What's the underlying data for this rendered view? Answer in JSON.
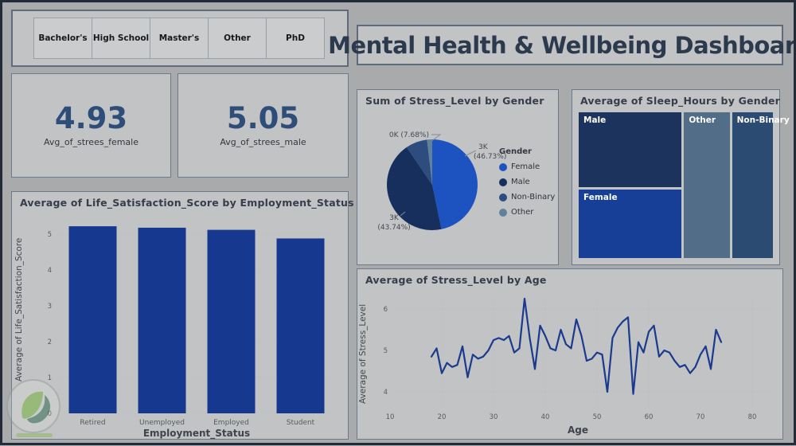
{
  "page": {
    "title": "Mental Health & Wellbeing Dashboard"
  },
  "filters": {
    "options": [
      "Bachelor's",
      "High School",
      "Master's",
      "Other",
      "PhD"
    ]
  },
  "kpis": [
    {
      "value": "4.93",
      "label": "Avg_of_strees_female"
    },
    {
      "value": "5.05",
      "label": "Avg_of_strees_male"
    }
  ],
  "colors": {
    "page_bg": "#a9aaab",
    "panel_bg": "#c2c3c4",
    "accent_blue": "#17388f",
    "dark_navy": "#16305c",
    "steel_blue": "#5f7d98",
    "title_text": "#2c3a4e"
  },
  "chart_data": [
    {
      "type": "bar",
      "title": "Average of Life_Satisfaction_Score by Employment_Status",
      "categories": [
        "Retired",
        "Unemployed",
        "Employed",
        "Student"
      ],
      "values": [
        5.22,
        5.18,
        5.12,
        4.88
      ],
      "xlabel": "Employment_Status",
      "ylabel": "Average of Life_Satisfaction_Score",
      "ylim": [
        0,
        5.5
      ],
      "yticks": [
        0,
        1,
        2,
        3,
        4,
        5
      ],
      "bar_color": "#17388f",
      "grid": true,
      "legend": "none"
    },
    {
      "type": "pie",
      "title": "Sum of Stress_Level by Gender",
      "legend_title": "Gender",
      "legend_position": "right",
      "slices": [
        {
          "label": "Female",
          "pct": 46.73,
          "value_label": "3K",
          "callout": [
            "3K",
            "(46.73%)"
          ],
          "color": "#1d53c0"
        },
        {
          "label": "Male",
          "pct": 43.74,
          "value_label": "3K",
          "callout": [
            "3K",
            "(43.74%)"
          ],
          "color": "#172f5c"
        },
        {
          "label": "Non-Binary",
          "pct": 7.68,
          "value_label": "0K",
          "callout": [
            "0K (7.68%)"
          ],
          "color": "#2c4d7d"
        },
        {
          "label": "Other",
          "pct": 1.85,
          "value_label": "",
          "callout": [],
          "color": "#61809b"
        }
      ]
    },
    {
      "type": "treemap",
      "title": "Average of Sleep_Hours by Gender",
      "tiles": [
        {
          "label": "Male",
          "color": "#1c335e"
        },
        {
          "label": "Female",
          "color": "#173f97"
        },
        {
          "label": "Other",
          "color": "#516d87"
        },
        {
          "label": "Non-Binary",
          "color": "#2c4b73"
        }
      ]
    },
    {
      "type": "line",
      "title": "Average of Stress_Level by Age",
      "xlabel": "Age",
      "ylabel": "Average of Stress_Level",
      "x": [
        18,
        19,
        20,
        21,
        22,
        23,
        24,
        25,
        26,
        27,
        28,
        29,
        30,
        31,
        32,
        33,
        34,
        35,
        36,
        37,
        38,
        39,
        40,
        41,
        42,
        43,
        44,
        45,
        46,
        47,
        48,
        49,
        50,
        51,
        52,
        53,
        54,
        55,
        56,
        57,
        58,
        59,
        60,
        61,
        62,
        63,
        64,
        65,
        66,
        67,
        68,
        69,
        70,
        71,
        72,
        73,
        74
      ],
      "y": [
        4.85,
        5.05,
        4.45,
        4.7,
        4.6,
        4.65,
        5.1,
        4.35,
        4.9,
        4.8,
        4.85,
        5.0,
        5.25,
        5.3,
        5.25,
        5.35,
        4.95,
        5.05,
        6.25,
        5.3,
        4.55,
        5.6,
        5.35,
        5.05,
        5.0,
        5.5,
        5.15,
        5.05,
        5.75,
        5.35,
        4.75,
        4.8,
        4.95,
        4.9,
        4.0,
        5.3,
        5.55,
        5.7,
        5.8,
        3.95,
        5.2,
        4.95,
        5.45,
        5.6,
        4.85,
        5.0,
        4.95,
        4.75,
        4.6,
        4.65,
        4.45,
        4.6,
        4.9,
        5.1,
        4.55,
        5.5,
        5.2
      ],
      "xticks": [
        10,
        20,
        30,
        40,
        50,
        60,
        70,
        80
      ],
      "yticks": [
        4,
        5,
        6
      ],
      "xlim": [
        5,
        83
      ],
      "ylim": [
        3.6,
        6.5
      ],
      "line_color": "#1a3a8e",
      "grid": true
    }
  ]
}
